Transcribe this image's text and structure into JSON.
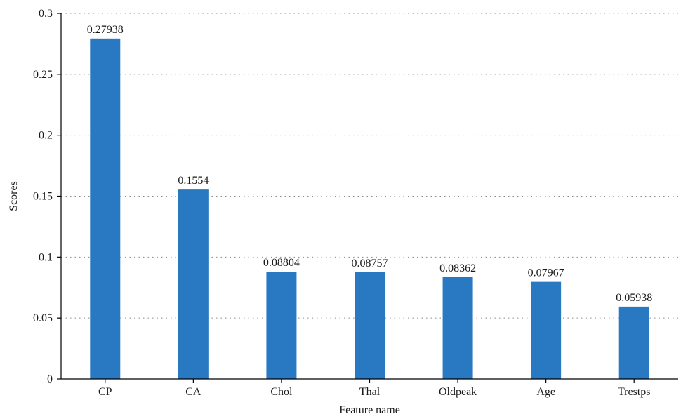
{
  "chart_data": {
    "type": "bar",
    "title": "",
    "xlabel": "Feature name",
    "ylabel": "Scores",
    "categories": [
      "CP",
      "CA",
      "Chol",
      "Thal",
      "Oldpeak",
      "Age",
      "Trestps"
    ],
    "values": [
      0.27938,
      0.1554,
      0.08804,
      0.08757,
      0.08362,
      0.07967,
      0.05938
    ],
    "value_labels": [
      "0.27938",
      "0.1554",
      "0.08804",
      "0.08757",
      "0.08362",
      "0.07967",
      "0.05938"
    ],
    "ylim": [
      0,
      0.3
    ],
    "yticks": [
      0,
      0.05,
      0.1,
      0.15,
      0.2,
      0.25,
      0.3
    ],
    "ytick_labels": [
      "0",
      "0.05",
      "0.1",
      "0.15",
      "0.2",
      "0.25",
      "0.3"
    ],
    "grid": "horizontal-dotted",
    "bar_color": "#2878c2",
    "axis_color": "#000000"
  }
}
